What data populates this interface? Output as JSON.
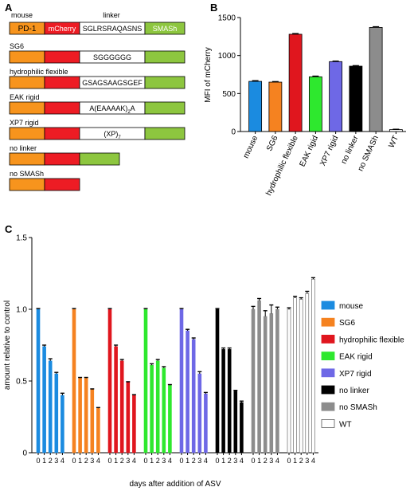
{
  "panels": {
    "a": "A",
    "b": "B",
    "c": "C"
  },
  "constructs": {
    "header": {
      "species": "mouse",
      "linker_col": "linker"
    },
    "colors": {
      "pd1": "#F7941D",
      "mcherry": "#ED1C24",
      "smash": "#8DC63F",
      "linker": "#FFFFFF"
    },
    "segment_labels": {
      "pd1": "PD-1",
      "mcherry": "mCherry",
      "smash": "SMASh"
    },
    "rows": [
      {
        "name": "",
        "linker": "SGLRSRAQASNS",
        "has_linker": true,
        "has_smash": true
      },
      {
        "name": "SG6",
        "linker": "SGGGGGG",
        "has_linker": true,
        "has_smash": true
      },
      {
        "name": "hydrophilic flexible",
        "linker": "GSAGSAAGSGEF",
        "has_linker": true,
        "has_smash": true
      },
      {
        "name": "EAK rigid",
        "linker_html": "A(EAAAAK)",
        "linker_sub": "2",
        "linker_tail": "A",
        "has_linker": true,
        "has_smash": true
      },
      {
        "name": "XP7 rigid",
        "linker_html": "(XP)",
        "linker_sub": "7",
        "linker_tail": "",
        "has_linker": true,
        "has_smash": true
      },
      {
        "name": "no linker",
        "has_linker": false,
        "has_smash": true
      },
      {
        "name": "no SMASh",
        "has_linker": false,
        "has_smash": false
      }
    ]
  },
  "chart_data": [
    {
      "type": "bar",
      "panel": "B",
      "categories": [
        "mouse",
        "SG6",
        "hydrophilic flexible",
        "EAK rigid",
        "XP7 rigid",
        "no linker",
        "no SMASh",
        "WT"
      ],
      "values": [
        660,
        650,
        1280,
        720,
        920,
        860,
        1370,
        25
      ],
      "errors": [
        8,
        6,
        8,
        8,
        6,
        6,
        8,
        4
      ],
      "colors": [
        "#1B8BE0",
        "#F58220",
        "#E0161E",
        "#2EE82E",
        "#6E68E6",
        "#000000",
        "#8C8C8C",
        "#FFFFFF"
      ],
      "ylabel": "MFI of mCherry",
      "ylim": [
        0,
        1500
      ],
      "yticks": [
        0,
        500,
        1000,
        1500
      ]
    },
    {
      "type": "bar",
      "panel": "C",
      "x": [
        "0",
        "1",
        "2",
        "3",
        "4"
      ],
      "xlabel": "days after addition of ASV",
      "ylabel": "amount relative to control",
      "ylim": [
        0,
        1.5
      ],
      "yticks": [
        "0",
        "0.5",
        "1.0",
        "1.5"
      ],
      "legend_position": "right",
      "series": [
        {
          "name": "mouse",
          "color": "#1B8BE0",
          "values": [
            1.0,
            0.74,
            0.64,
            0.55,
            0.4
          ],
          "errors": [
            0.005,
            0.01,
            0.015,
            0.01,
            0.015
          ]
        },
        {
          "name": "SG6",
          "color": "#F58220",
          "values": [
            1.0,
            0.52,
            0.52,
            0.44,
            0.31
          ],
          "errors": [
            0.005,
            0.005,
            0.005,
            0.005,
            0.005
          ]
        },
        {
          "name": "hydrophilic flexible",
          "color": "#E0161E",
          "values": [
            1.0,
            0.74,
            0.64,
            0.49,
            0.4
          ],
          "errors": [
            0.005,
            0.01,
            0.01,
            0.005,
            0.005
          ]
        },
        {
          "name": "EAK rigid",
          "color": "#2EE82E",
          "values": [
            1.0,
            0.61,
            0.64,
            0.59,
            0.47
          ],
          "errors": [
            0.005,
            0.01,
            0.01,
            0.01,
            0.005
          ]
        },
        {
          "name": "XP7 rigid",
          "color": "#6E68E6",
          "values": [
            1.0,
            0.85,
            0.79,
            0.55,
            0.41
          ],
          "errors": [
            0.005,
            0.01,
            0.01,
            0.015,
            0.01
          ]
        },
        {
          "name": "no linker",
          "color": "#000000",
          "values": [
            1.0,
            0.72,
            0.72,
            0.43,
            0.35
          ],
          "errors": [
            0.005,
            0.01,
            0.01,
            0.005,
            0.01
          ]
        },
        {
          "name": "no SMASh",
          "color": "#8C8C8C",
          "values": [
            1.0,
            1.06,
            0.95,
            0.97,
            1.0
          ],
          "errors": [
            0.02,
            0.015,
            0.04,
            0.06,
            0.015
          ]
        },
        {
          "name": "WT",
          "color": "#FFFFFF",
          "values": [
            1.0,
            1.08,
            1.07,
            1.11,
            1.21
          ],
          "errors": [
            0.01,
            0.01,
            0.01,
            0.015,
            0.01
          ]
        }
      ]
    }
  ]
}
